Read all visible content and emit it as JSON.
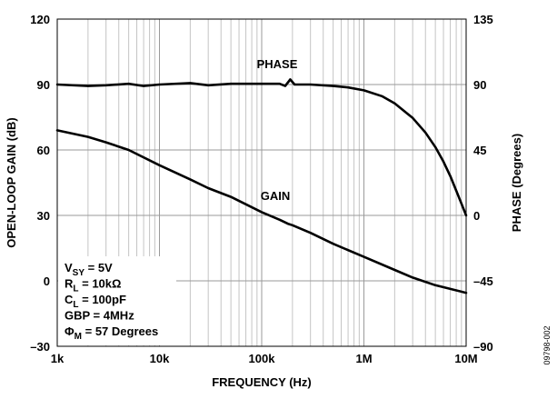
{
  "chart_data": {
    "type": "line",
    "xlabel": "FREQUENCY (Hz)",
    "ylabel_left": "OPEN-LOOP GAIN (dB)",
    "ylabel_right": "PHASE (Degrees)",
    "x_scale": "log",
    "xlim": [
      1000,
      10000000
    ],
    "ylim_left": [
      -30,
      120
    ],
    "ylim_right": [
      -90,
      135
    ],
    "grid": "on",
    "x_ticks": [
      {
        "value": 1000,
        "label": "1k"
      },
      {
        "value": 10000,
        "label": "10k"
      },
      {
        "value": 100000,
        "label": "100k"
      },
      {
        "value": 1000000,
        "label": "1M"
      },
      {
        "value": 10000000,
        "label": "10M"
      }
    ],
    "y_ticks_left": [
      {
        "value": 120,
        "label": "120"
      },
      {
        "value": 90,
        "label": "90"
      },
      {
        "value": 60,
        "label": "60"
      },
      {
        "value": 30,
        "label": "30"
      },
      {
        "value": 0,
        "label": "0"
      },
      {
        "value": -30,
        "label": "–30"
      }
    ],
    "y_ticks_right": [
      {
        "value": 135,
        "label": "135"
      },
      {
        "value": 90,
        "label": "90"
      },
      {
        "value": 45,
        "label": "45"
      },
      {
        "value": 0,
        "label": "0"
      },
      {
        "value": -45,
        "label": "–45"
      },
      {
        "value": -90,
        "label": "–90"
      }
    ],
    "series": [
      {
        "name": "GAIN",
        "axis": "left",
        "points": [
          [
            1000,
            69.0
          ],
          [
            2000,
            66.0
          ],
          [
            3000,
            63.5
          ],
          [
            5000,
            60.0
          ],
          [
            10000,
            53.0
          ],
          [
            20000,
            46.5
          ],
          [
            30000,
            42.5
          ],
          [
            50000,
            38.5
          ],
          [
            100000,
            31.5
          ],
          [
            150000,
            28.0
          ],
          [
            180000,
            26.2
          ],
          [
            200000,
            25.5
          ],
          [
            300000,
            22.0
          ],
          [
            500000,
            17.0
          ],
          [
            1000000,
            11.0
          ],
          [
            2000000,
            5.0
          ],
          [
            3000000,
            1.5
          ],
          [
            5000000,
            -2.0
          ],
          [
            10000000,
            -5.5
          ]
        ]
      },
      {
        "name": "PHASE",
        "axis": "right",
        "points": [
          [
            1000,
            90.0
          ],
          [
            2000,
            89.0
          ],
          [
            3000,
            89.5
          ],
          [
            5000,
            90.5
          ],
          [
            7000,
            89.0
          ],
          [
            10000,
            90.0
          ],
          [
            20000,
            91.0
          ],
          [
            30000,
            89.5
          ],
          [
            50000,
            90.5
          ],
          [
            100000,
            90.5
          ],
          [
            150000,
            90.5
          ],
          [
            170000,
            89.0
          ],
          [
            190000,
            93.5
          ],
          [
            210000,
            90.0
          ],
          [
            300000,
            90.0
          ],
          [
            500000,
            89.0
          ],
          [
            700000,
            88.0
          ],
          [
            1000000,
            86.0
          ],
          [
            1500000,
            82.0
          ],
          [
            2000000,
            77.0
          ],
          [
            3000000,
            67.0
          ],
          [
            4000000,
            57.0
          ],
          [
            5000000,
            47.0
          ],
          [
            6000000,
            37.0
          ],
          [
            7000000,
            27.0
          ],
          [
            8000000,
            17.0
          ],
          [
            9000000,
            8.0
          ],
          [
            10000000,
            0.0
          ]
        ]
      }
    ],
    "annotations": {
      "phase_label": "PHASE",
      "gain_label": "GAIN",
      "conditions": [
        {
          "base": "V",
          "sub": "SY",
          "rest": " = 5V"
        },
        {
          "base": "R",
          "sub": "L",
          "rest": " = 10kΩ"
        },
        {
          "base": "C",
          "sub": "L",
          "rest": " = 100pF"
        },
        {
          "base": "GBP",
          "sub": "",
          "rest": " = 4MHz"
        },
        {
          "base": "Φ",
          "sub": "M",
          "rest": " = 57 Degrees"
        }
      ],
      "figure_id": "09798-002"
    }
  }
}
